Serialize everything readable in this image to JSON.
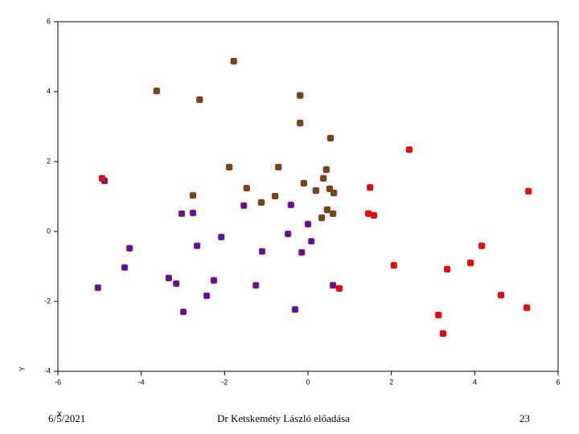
{
  "chart_data": {
    "type": "scatter",
    "x_label": "X",
    "y_label": "Y",
    "xlim": [
      -6,
      6
    ],
    "xticks": [
      -6,
      -4,
      -2,
      0,
      2,
      4,
      6
    ],
    "ylim": [
      -4,
      6
    ],
    "yticks": [
      -4,
      -2,
      0,
      2,
      4,
      6
    ],
    "grid": false,
    "marker_edge": "#e01010",
    "series": [
      {
        "color": "#2f6a1c",
        "x": [
          -1.78,
          -3.63,
          -2.6,
          -0.19,
          -0.19,
          0.54,
          -1.89,
          -0.71,
          -1.47,
          -2.76,
          -1.12,
          -0.79,
          -0.1,
          0.19,
          0.37,
          0.44,
          0.52,
          0.62,
          0.33,
          0.46,
          0.6
        ],
        "values": [
          4.87,
          4.02,
          3.77,
          3.89,
          3.1,
          2.67,
          1.84,
          1.84,
          1.24,
          1.03,
          0.83,
          1.01,
          1.38,
          1.17,
          1.52,
          1.77,
          1.22,
          1.1,
          0.39,
          0.62,
          0.51
        ]
      },
      {
        "color": "#2a1fd0",
        "x": [
          -4.88,
          -3.03,
          -2.76,
          -4.28,
          -2.66,
          -2.08,
          -1.54,
          -0.41,
          -1.1,
          -0.48,
          0.0,
          0.08,
          -0.15,
          -4.4,
          -3.34,
          -3.16,
          -2.26,
          -2.43,
          -1.25,
          -2.99,
          -0.31,
          0.6,
          -5.04
        ],
        "values": [
          1.45,
          0.51,
          0.53,
          -0.48,
          -0.41,
          -0.16,
          0.74,
          0.76,
          -0.57,
          -0.07,
          0.21,
          -0.28,
          -0.6,
          -1.03,
          -1.33,
          -1.49,
          -1.4,
          -1.84,
          -1.54,
          -2.3,
          -2.23,
          -1.54,
          -1.61
        ]
      },
      {
        "color": "#e01010",
        "x": [
          0.75,
          1.49,
          1.45,
          1.58,
          2.43,
          2.06,
          5.29,
          4.17,
          3.9,
          3.34,
          4.63,
          5.25,
          3.13,
          3.24,
          -4.94
        ],
        "values": [
          -1.63,
          1.26,
          0.51,
          0.46,
          2.34,
          -0.97,
          1.15,
          -0.41,
          -0.9,
          -1.08,
          -1.82,
          -2.18,
          -2.39,
          -2.92,
          1.52
        ]
      }
    ]
  },
  "footer": {
    "date": "6/5/2021",
    "author": "Dr Ketskeméty László előadása",
    "page": "23"
  }
}
